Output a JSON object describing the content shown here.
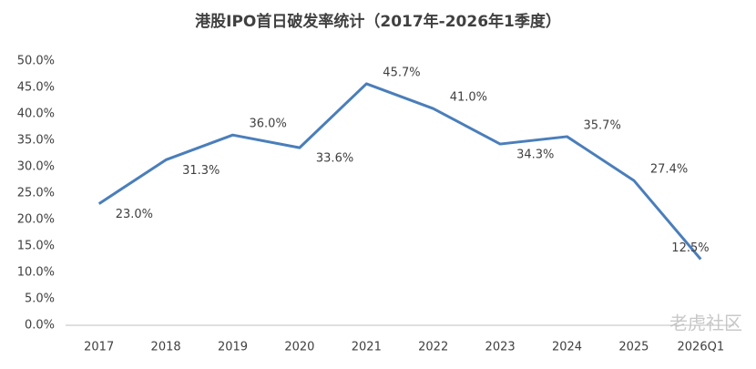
{
  "chart_data": {
    "type": "line",
    "title": "港股IPO首日破发率统计（2017年-2026年1季度）",
    "categories": [
      "2017",
      "2018",
      "2019",
      "2020",
      "2021",
      "2022",
      "2023",
      "2024",
      "2025",
      "2026Q1"
    ],
    "series": [
      {
        "color": "#4a7ebb",
        "values": [
          23.0,
          31.3,
          36.0,
          33.6,
          45.7,
          41.0,
          34.3,
          35.7,
          27.4,
          12.5
        ],
        "value_labels": [
          "23.0%",
          "31.3%",
          "36.0%",
          "33.6%",
          "45.7%",
          "41.0%",
          "34.3%",
          "35.7%",
          "27.4%",
          "12.5%"
        ]
      }
    ],
    "ylim": [
      0,
      50
    ],
    "yticks": [
      {
        "value": 0,
        "label": "0.0%"
      },
      {
        "value": 5,
        "label": "5.0%"
      },
      {
        "value": 10,
        "label": "10.0%"
      },
      {
        "value": 15,
        "label": "15.0%"
      },
      {
        "value": 20,
        "label": "20.0%"
      },
      {
        "value": 25,
        "label": "25.0%"
      },
      {
        "value": 30,
        "label": "30.0%"
      },
      {
        "value": 35,
        "label": "35.0%"
      },
      {
        "value": 40,
        "label": "40.0%"
      },
      {
        "value": 45,
        "label": "45.0%"
      },
      {
        "value": 50,
        "label": "50.0%"
      }
    ],
    "grid": false,
    "watermark": "老虎社区"
  }
}
